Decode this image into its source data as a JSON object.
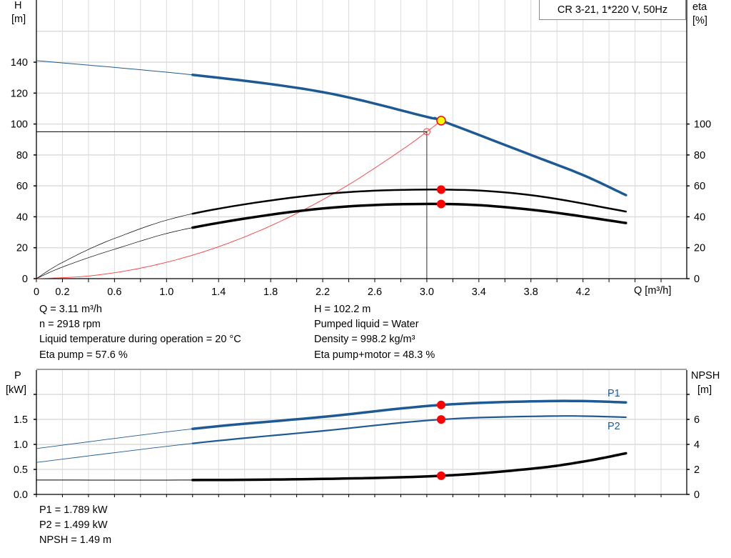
{
  "colors": {
    "head": "#1d5a94",
    "power": "#1d5a94",
    "efficiency": "#000000",
    "npsh": "#000000",
    "system_curve": "#ff3b3b",
    "duty_point": "#ff0000",
    "duty_point_fill": "#ffff00",
    "grid": "#dcdcdc"
  },
  "legend": "CR 3-21, 1*220 V, 50Hz",
  "chart_data": [
    {
      "type": "line",
      "xlabel": "Q [m³/h]",
      "ylabel_left": "H",
      "ylabel_left_unit": "[m]",
      "ylabel_right": "eta",
      "ylabel_right_unit": "[%]",
      "xlim": [
        0,
        5.0
      ],
      "ylim_left": [
        0,
        180
      ],
      "ylim_right": [
        0,
        180
      ],
      "xticks": [
        "0",
        "0.2",
        "0.6",
        "1.0",
        "1.4",
        "1.8",
        "2.2",
        "2.6",
        "3.0",
        "3.4",
        "3.8",
        "4.2"
      ],
      "yticks_left": [
        "0",
        "20",
        "40",
        "60",
        "80",
        "100",
        "120",
        "140"
      ],
      "yticks_right": [
        "0",
        "20",
        "40",
        "60",
        "80",
        "100"
      ],
      "grid": true,
      "series": [
        {
          "key": "H",
          "axis": "left",
          "x": [
            0,
            1.2,
            2.19,
            3.0,
            3.11,
            3.8,
            4.2,
            4.53
          ],
          "y": [
            141,
            131.8,
            120.8,
            104.6,
            102.2,
            80,
            67,
            54
          ]
        },
        {
          "key": "eta_pump",
          "axis": "right",
          "x": [
            0,
            0.2,
            0.6,
            1.2,
            2.2,
            3.11,
            3.8,
            4.53
          ],
          "y": [
            0,
            10.5,
            26,
            42,
            54.6,
            57.6,
            54,
            43.4
          ]
        },
        {
          "key": "eta_total",
          "axis": "right",
          "x": [
            0,
            0.2,
            0.6,
            1.2,
            2.2,
            3.11,
            3.8,
            4.53
          ],
          "y": [
            0,
            7.5,
            19,
            33,
            45.4,
            48.3,
            44.6,
            36
          ]
        },
        {
          "key": "system",
          "axis": "left",
          "x": [
            0,
            0.4,
            0.8,
            1.2,
            1.6,
            2.0,
            2.4,
            2.8,
            3.0,
            3.11
          ],
          "y": [
            0,
            1.7,
            6.8,
            15.2,
            27,
            42.2,
            60.8,
            82.8,
            95,
            102.2
          ]
        }
      ],
      "duty_point": {
        "q": 3.11,
        "h": 102.2,
        "eta_pump": 57.6,
        "eta_total": 48.3
      },
      "reference_point": {
        "q": 3.0,
        "h": 95
      }
    },
    {
      "type": "line",
      "ylabel_left": "P",
      "ylabel_left_unit": "[kW]",
      "ylabel_right": "NPSH",
      "ylabel_right_unit": "[m]",
      "xlim": [
        0,
        5.0
      ],
      "ylim_left": [
        0,
        2.4
      ],
      "ylim_right": [
        0,
        9.6
      ],
      "yticks_left": [
        "0.0",
        "0.5",
        "1.0",
        "1.5"
      ],
      "yticks_right": [
        "0",
        "2",
        "4",
        "6"
      ],
      "grid": true,
      "series": [
        {
          "key": "P1",
          "name": "P1",
          "axis": "left",
          "x": [
            0,
            1.2,
            2.2,
            3.11,
            4.0,
            4.53
          ],
          "y": [
            0.917,
            1.31,
            1.55,
            1.789,
            1.868,
            1.84
          ]
        },
        {
          "key": "P2",
          "name": "P2",
          "axis": "left",
          "x": [
            0,
            1.2,
            2.2,
            3.11,
            4.0,
            4.53
          ],
          "y": [
            0.64,
            1.02,
            1.27,
            1.499,
            1.567,
            1.543
          ]
        },
        {
          "key": "NPSH",
          "axis": "right",
          "x": [
            0,
            1.2,
            2.2,
            3.11,
            3.8,
            4.2,
            4.53
          ],
          "y": [
            1.15,
            1.15,
            1.24,
            1.49,
            2.05,
            2.62,
            3.29
          ]
        }
      ]
    }
  ],
  "readouts": {
    "q": "Q = 3.11 m³/h",
    "n": "n = 2918 rpm",
    "temp": "Liquid temperature during operation = 20 °C",
    "eta_pump": "Eta pump = 57.6 %",
    "h": "H = 102.2 m",
    "liquid": "Pumped liquid = Water",
    "density": "Density = 998.2 kg/m³",
    "eta_total": "Eta pump+motor = 48.3 %",
    "p1": "P1 = 1.789 kW",
    "p2": "P2 = 1.499 kW",
    "npsh": "NPSH = 1.49 m"
  }
}
